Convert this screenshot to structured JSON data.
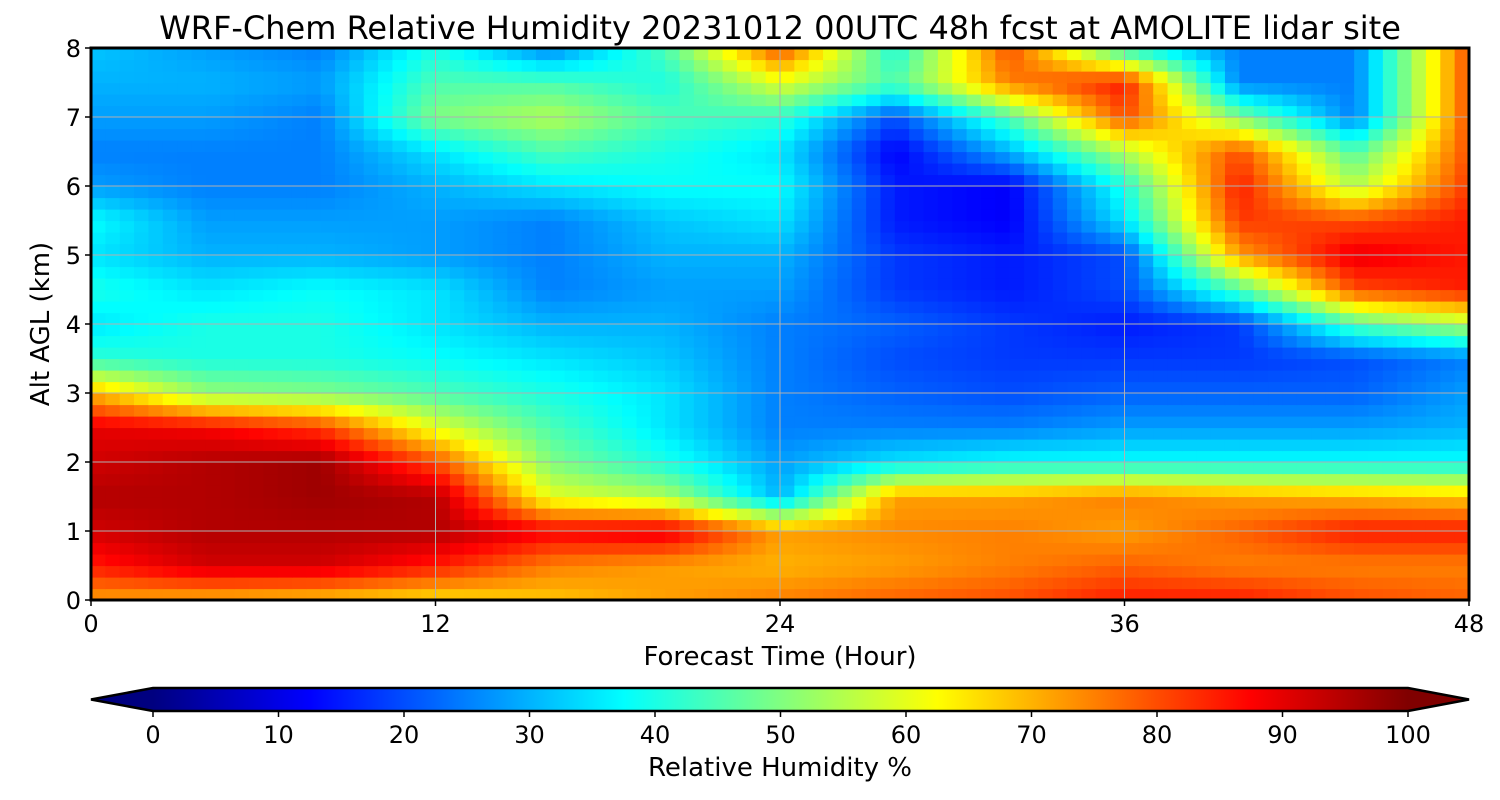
{
  "title": "WRF-Chem Relative Humidity 20231012 00UTC 48h fcst at AMOLITE lidar site",
  "chart_data": {
    "type": "heatmap",
    "title": "WRF-Chem Relative Humidity 20231012 00UTC 48h fcst at AMOLITE lidar site",
    "xlabel": "Forecast Time (Hour)",
    "ylabel": "Alt AGL (km)",
    "xlim": [
      0,
      48
    ],
    "ylim": [
      0,
      8
    ],
    "xticks": [
      "0",
      "12",
      "24",
      "36",
      "48"
    ],
    "yticks": [
      "0",
      "1",
      "2",
      "3",
      "4",
      "5",
      "6",
      "7",
      "8"
    ],
    "grid": true,
    "x": [
      0,
      4,
      8,
      12,
      16,
      20,
      24,
      28,
      32,
      36,
      40,
      44,
      48
    ],
    "y": [
      0,
      0.5,
      1,
      1.5,
      2,
      2.5,
      3,
      3.5,
      4,
      4.5,
      5,
      5.5,
      6,
      6.5,
      7,
      7.5,
      8
    ],
    "z": [
      [
        72,
        70,
        68,
        65,
        68,
        72,
        75,
        78,
        80,
        85,
        85,
        80,
        78
      ],
      [
        85,
        92,
        92,
        85,
        75,
        72,
        70,
        72,
        75,
        78,
        75,
        75,
        75
      ],
      [
        92,
        95,
        95,
        95,
        88,
        90,
        72,
        74,
        75,
        72,
        78,
        85,
        85
      ],
      [
        95,
        95,
        97,
        95,
        60,
        55,
        30,
        72,
        72,
        75,
        72,
        70,
        68
      ],
      [
        92,
        95,
        97,
        80,
        50,
        40,
        28,
        35,
        38,
        38,
        38,
        38,
        38
      ],
      [
        90,
        88,
        82,
        60,
        45,
        35,
        25,
        25,
        25,
        28,
        28,
        28,
        30
      ],
      [
        70,
        52,
        50,
        45,
        40,
        35,
        25,
        22,
        20,
        22,
        22,
        22,
        28
      ],
      [
        42,
        40,
        40,
        38,
        35,
        32,
        25,
        20,
        18,
        18,
        18,
        20,
        25
      ],
      [
        35,
        40,
        40,
        35,
        30,
        30,
        25,
        22,
        18,
        15,
        18,
        45,
        55
      ],
      [
        40,
        35,
        38,
        35,
        25,
        28,
        28,
        18,
        15,
        20,
        45,
        80,
        85
      ],
      [
        35,
        30,
        30,
        28,
        25,
        30,
        30,
        18,
        15,
        20,
        72,
        90,
        85
      ],
      [
        38,
        28,
        28,
        28,
        25,
        32,
        35,
        15,
        12,
        35,
        82,
        80,
        85
      ],
      [
        28,
        25,
        25,
        30,
        35,
        38,
        38,
        15,
        12,
        40,
        85,
        55,
        82
      ],
      [
        25,
        25,
        25,
        35,
        45,
        40,
        35,
        12,
        30,
        55,
        80,
        45,
        80
      ],
      [
        28,
        28,
        25,
        50,
        55,
        45,
        42,
        20,
        45,
        80,
        50,
        25,
        80
      ],
      [
        30,
        30,
        28,
        45,
        45,
        40,
        60,
        45,
        75,
        85,
        25,
        25,
        80
      ],
      [
        32,
        28,
        25,
        40,
        25,
        45,
        80,
        40,
        80,
        40,
        25,
        25,
        80
      ]
    ],
    "colorbar": {
      "label": "Relative Humidity %",
      "min": 0,
      "max": 100,
      "ticks": [
        "0",
        "10",
        "20",
        "30",
        "40",
        "50",
        "60",
        "70",
        "80",
        "90",
        "100"
      ],
      "extend": "both",
      "colormap": "jet"
    }
  }
}
